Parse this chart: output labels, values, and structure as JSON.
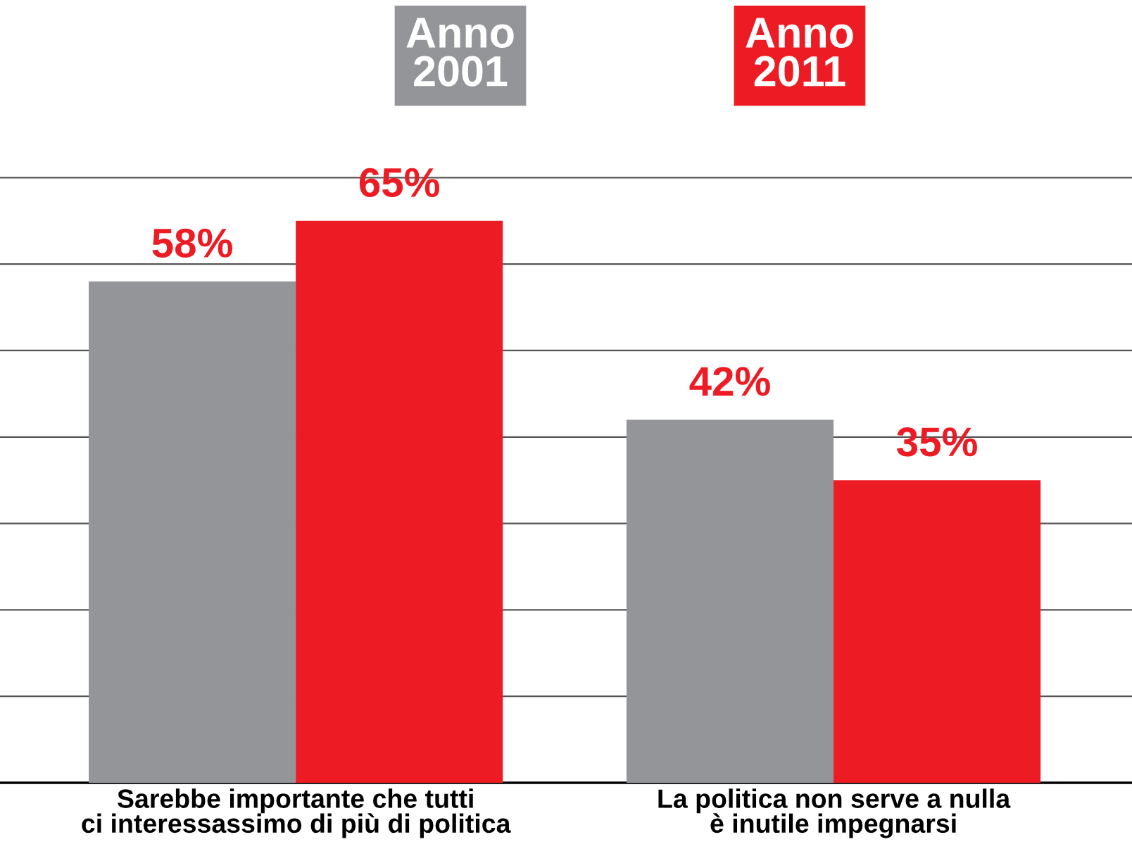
{
  "chart_data": {
    "type": "bar",
    "categories": [
      "Sarebbe importante che tutti\nci interessassimo di più di politica",
      "La politica non serve a nulla\nè inutile impegnarsi"
    ],
    "series": [
      {
        "name": "Anno\n2001",
        "color": "#939598",
        "values": [
          58,
          42
        ],
        "value_labels": [
          "58%",
          "42%"
        ]
      },
      {
        "name": "Anno\n2011",
        "color": "#ed1c24",
        "values": [
          65,
          35
        ],
        "value_labels": [
          "65%",
          "35%"
        ]
      }
    ],
    "tick_labels": "x",
    "grid": "y",
    "legend": "top"
  }
}
